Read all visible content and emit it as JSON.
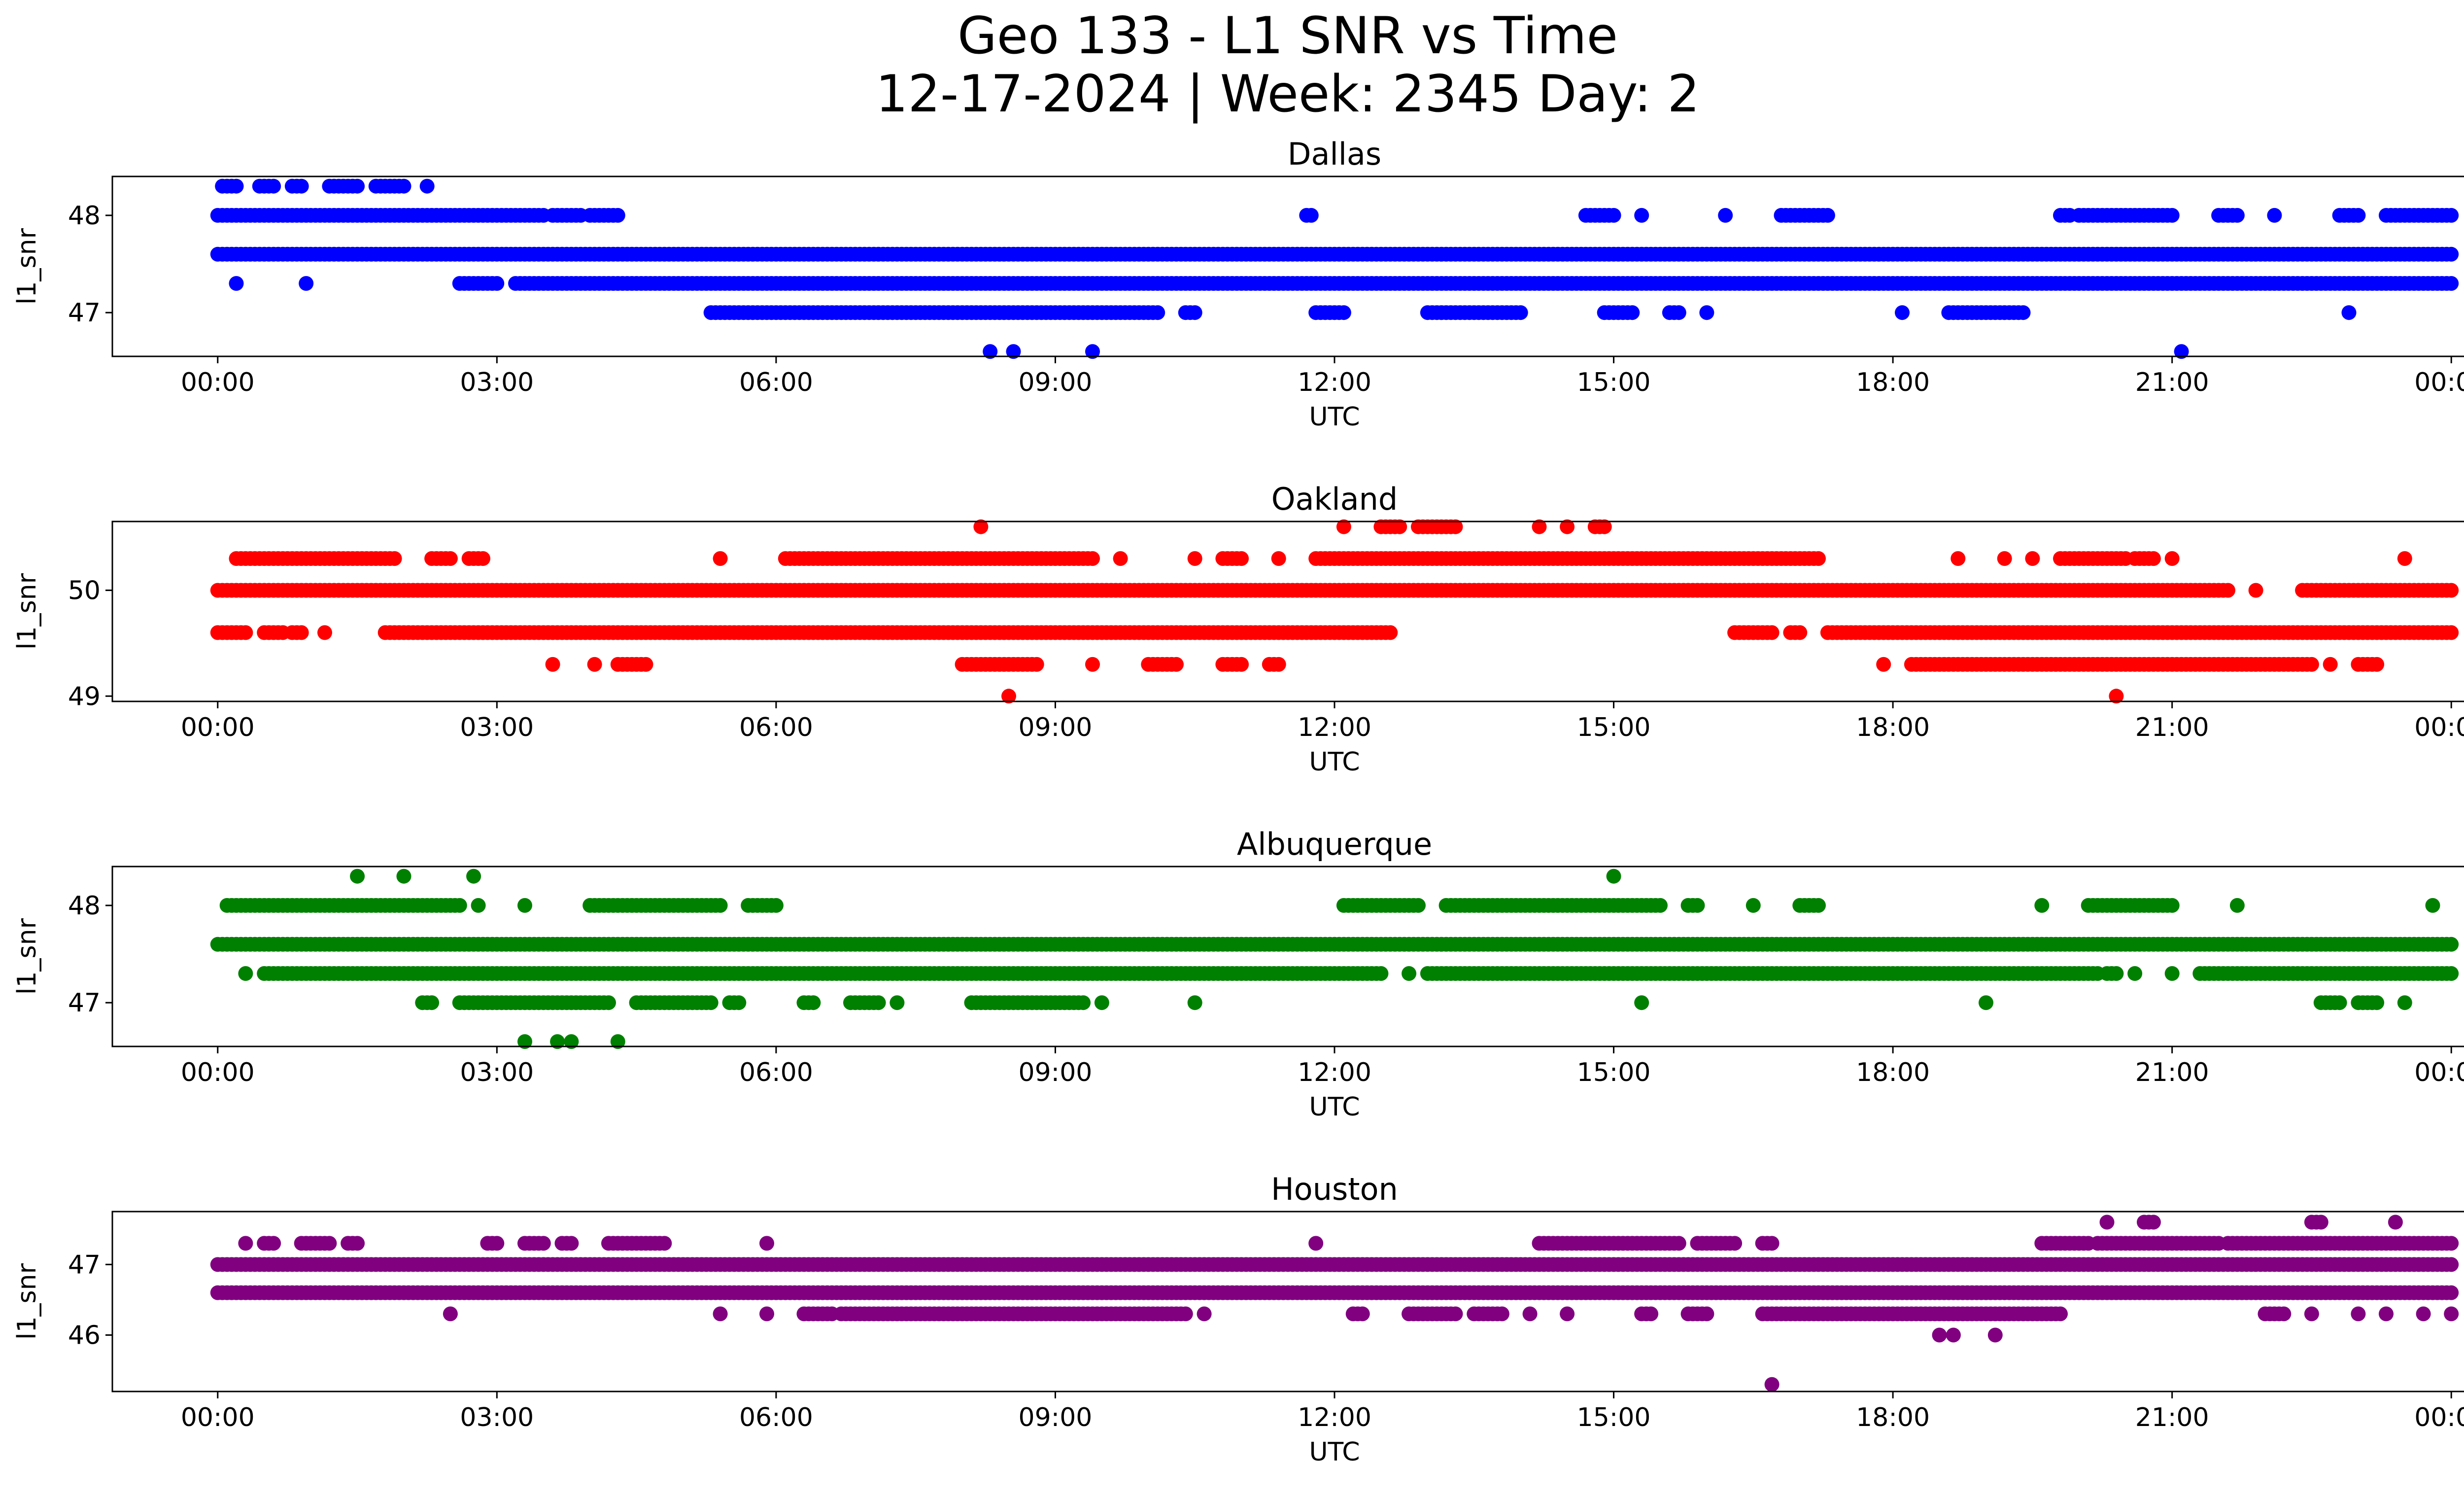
{
  "title": {
    "line1": "Geo 133 - L1 SNR vs Time",
    "line2": "12-17-2024 | Week: 2345 Day: 2"
  },
  "chart_data": [
    {
      "type": "scatter",
      "title": "Dallas",
      "xlabel": "UTC",
      "ylabel": "l1_snr",
      "color": "#0000ff",
      "xticks": [
        "00:00",
        "03:00",
        "06:00",
        "09:00",
        "12:00",
        "15:00",
        "18:00",
        "21:00",
        "00:00"
      ],
      "xlim": [
        0,
        24
      ],
      "ylim": [
        46.55,
        48.4
      ],
      "yticks": [
        47,
        48
      ],
      "series": [
        {
          "y": 47.6,
          "segments": [
            [
              0,
              24
            ]
          ]
        },
        {
          "y": 48.0,
          "segments": [
            [
              0,
              3.5
            ],
            [
              3.6,
              3.9
            ],
            [
              4.0,
              4.3
            ],
            [
              11.7,
              11.75
            ],
            [
              14.7,
              15.0
            ],
            [
              15.3,
              15.3
            ],
            [
              16.2,
              16.2
            ],
            [
              16.8,
              17.3
            ],
            [
              19.8,
              19.9
            ],
            [
              20.0,
              21.0
            ],
            [
              21.5,
              21.7
            ],
            [
              22.1,
              22.1
            ],
            [
              22.8,
              23.0
            ],
            [
              23.3,
              24
            ]
          ]
        },
        {
          "y": 48.3,
          "segments": [
            [
              0.05,
              0.2
            ],
            [
              0.45,
              0.6
            ],
            [
              0.8,
              0.9
            ],
            [
              1.2,
              1.5
            ],
            [
              1.7,
              2.0
            ],
            [
              2.25,
              2.25
            ]
          ]
        },
        {
          "y": 47.3,
          "segments": [
            [
              2.6,
              3.0
            ],
            [
              3.2,
              24
            ]
          ]
        },
        {
          "y": 47.0,
          "segments": [
            [
              5.3,
              10.1
            ],
            [
              10.4,
              10.5
            ],
            [
              11.8,
              12.1
            ],
            [
              13.0,
              14.0
            ],
            [
              14.9,
              15.2
            ],
            [
              15.6,
              15.7
            ],
            [
              16.0,
              16.0
            ],
            [
              18.1,
              18.1
            ],
            [
              18.6,
              19.4
            ],
            [
              22.9,
              22.9
            ]
          ]
        }
      ],
      "points": [
        {
          "x": 0.2,
          "y": 47.3
        },
        {
          "x": 0.95,
          "y": 47.3
        },
        {
          "x": 8.3,
          "y": 46.6
        },
        {
          "x": 8.55,
          "y": 46.6
        },
        {
          "x": 9.4,
          "y": 46.6
        },
        {
          "x": 21.1,
          "y": 46.6
        }
      ]
    },
    {
      "type": "scatter",
      "title": "Oakland",
      "xlabel": "UTC",
      "ylabel": "l1_snr",
      "color": "#ff0000",
      "xticks": [
        "00:00",
        "03:00",
        "06:00",
        "09:00",
        "12:00",
        "15:00",
        "18:00",
        "21:00",
        "00:00"
      ],
      "xlim": [
        0,
        24
      ],
      "ylim": [
        48.95,
        50.65
      ],
      "yticks": [
        49,
        50
      ],
      "series": [
        {
          "y": 50.0,
          "segments": [
            [
              0,
              21.6
            ],
            [
              21.9,
              21.9
            ],
            [
              22.4,
              24
            ]
          ]
        },
        {
          "y": 50.3,
          "segments": [
            [
              0.2,
              1.9
            ],
            [
              2.3,
              2.5
            ],
            [
              2.7,
              2.85
            ],
            [
              5.4,
              5.4
            ],
            [
              6.1,
              9.4
            ],
            [
              9.7,
              9.7
            ],
            [
              10.5,
              10.5
            ],
            [
              10.8,
              11.0
            ],
            [
              11.4,
              11.4
            ],
            [
              11.8,
              17.2
            ],
            [
              18.7,
              18.7
            ],
            [
              19.2,
              19.2
            ],
            [
              19.5,
              19.5
            ],
            [
              19.8,
              20.5
            ],
            [
              20.6,
              20.8
            ],
            [
              21.0,
              21.0
            ],
            [
              23.5,
              23.5
            ]
          ]
        },
        {
          "y": 49.6,
          "segments": [
            [
              0,
              0.3
            ],
            [
              0.5,
              0.7
            ],
            [
              0.8,
              0.9
            ],
            [
              1.15,
              1.15
            ],
            [
              1.8,
              12.6
            ],
            [
              16.3,
              16.7
            ],
            [
              16.9,
              17.0
            ],
            [
              17.3,
              24
            ]
          ]
        },
        {
          "y": 49.3,
          "segments": [
            [
              3.6,
              3.6
            ],
            [
              4.05,
              4.05
            ],
            [
              4.3,
              4.6
            ],
            [
              8.0,
              8.8
            ],
            [
              9.4,
              9.4
            ],
            [
              10.0,
              10.3
            ],
            [
              10.8,
              11.0
            ],
            [
              11.3,
              11.4
            ],
            [
              17.9,
              17.9
            ],
            [
              18.2,
              22.5
            ],
            [
              22.7,
              22.7
            ],
            [
              23.0,
              23.2
            ]
          ]
        },
        {
          "y": 50.6,
          "segments": [
            [
              8.2,
              8.2
            ],
            [
              12.1,
              12.1
            ],
            [
              12.5,
              12.7
            ],
            [
              12.9,
              13.3
            ],
            [
              14.2,
              14.2
            ],
            [
              14.5,
              14.5
            ],
            [
              14.8,
              14.9
            ]
          ]
        }
      ],
      "points": [
        {
          "x": 8.5,
          "y": 49.0
        },
        {
          "x": 20.4,
          "y": 49.0
        }
      ]
    },
    {
      "type": "scatter",
      "title": "Albuquerque",
      "xlabel": "UTC",
      "ylabel": "l1_snr",
      "color": "#008000",
      "xticks": [
        "00:00",
        "03:00",
        "06:00",
        "09:00",
        "12:00",
        "15:00",
        "18:00",
        "21:00",
        "00:00"
      ],
      "xlim": [
        0,
        24
      ],
      "ylim": [
        46.55,
        48.4
      ],
      "yticks": [
        47,
        48
      ],
      "series": [
        {
          "y": 47.6,
          "segments": [
            [
              0,
              24
            ]
          ]
        },
        {
          "y": 48.0,
          "segments": [
            [
              0.1,
              2.6
            ],
            [
              2.8,
              2.8
            ],
            [
              3.3,
              3.3
            ],
            [
              4.0,
              5.4
            ],
            [
              5.7,
              6.0
            ],
            [
              12.1,
              12.9
            ],
            [
              13.2,
              15.5
            ],
            [
              15.8,
              15.9
            ],
            [
              16.5,
              16.5
            ],
            [
              17.0,
              17.2
            ],
            [
              19.6,
              19.6
            ],
            [
              20.1,
              21.0
            ],
            [
              21.7,
              21.7
            ],
            [
              23.8,
              23.8
            ]
          ]
        },
        {
          "y": 48.3,
          "segments": [
            [
              1.5,
              1.5
            ],
            [
              2.0,
              2.0
            ],
            [
              2.75,
              2.75
            ],
            [
              15.0,
              15.0
            ]
          ]
        },
        {
          "y": 47.3,
          "segments": [
            [
              0.3,
              0.3
            ],
            [
              0.5,
              12.5
            ],
            [
              12.8,
              12.8
            ],
            [
              13.0,
              20.2
            ],
            [
              20.3,
              20.4
            ],
            [
              20.6,
              20.6
            ],
            [
              21.0,
              21.0
            ],
            [
              21.3,
              24
            ]
          ]
        },
        {
          "y": 47.0,
          "segments": [
            [
              2.2,
              2.3
            ],
            [
              2.6,
              4.2
            ],
            [
              4.5,
              5.3
            ],
            [
              5.5,
              5.6
            ],
            [
              6.3,
              6.4
            ],
            [
              6.8,
              7.1
            ],
            [
              7.3,
              7.3
            ],
            [
              8.1,
              9.3
            ],
            [
              9.5,
              9.5
            ],
            [
              10.5,
              10.5
            ],
            [
              15.3,
              15.3
            ],
            [
              19.0,
              19.0
            ],
            [
              22.6,
              22.8
            ],
            [
              23.0,
              23.2
            ],
            [
              23.5,
              23.5
            ]
          ]
        }
      ],
      "points": [
        {
          "x": 3.3,
          "y": 46.6
        },
        {
          "x": 3.65,
          "y": 46.6
        },
        {
          "x": 3.8,
          "y": 46.6
        },
        {
          "x": 4.3,
          "y": 46.6
        }
      ]
    },
    {
      "type": "scatter",
      "title": "Houston",
      "xlabel": "UTC",
      "ylabel": "l1_snr",
      "color": "#800080",
      "xticks": [
        "00:00",
        "03:00",
        "06:00",
        "09:00",
        "12:00",
        "15:00",
        "18:00",
        "21:00",
        "00:00"
      ],
      "xlim": [
        0,
        24
      ],
      "ylim": [
        45.2,
        47.75
      ],
      "yticks": [
        46,
        47
      ],
      "series": [
        {
          "y": 47.0,
          "segments": [
            [
              0,
              24
            ]
          ]
        },
        {
          "y": 46.6,
          "segments": [
            [
              0,
              24
            ]
          ]
        },
        {
          "y": 47.3,
          "segments": [
            [
              0.3,
              0.3
            ],
            [
              0.5,
              0.6
            ],
            [
              0.9,
              1.2
            ],
            [
              1.4,
              1.5
            ],
            [
              2.9,
              3.0
            ],
            [
              3.3,
              3.5
            ],
            [
              3.7,
              3.8
            ],
            [
              4.2,
              4.8
            ],
            [
              5.9,
              5.9
            ],
            [
              11.8,
              11.8
            ],
            [
              14.2,
              15.7
            ],
            [
              15.9,
              16.3
            ],
            [
              16.6,
              16.7
            ],
            [
              19.6,
              20.1
            ],
            [
              20.2,
              21.5
            ],
            [
              21.6,
              24
            ]
          ]
        },
        {
          "y": 46.3,
          "segments": [
            [
              2.5,
              2.5
            ],
            [
              5.4,
              5.4
            ],
            [
              5.9,
              5.9
            ],
            [
              6.3,
              6.6
            ],
            [
              6.7,
              10.4
            ],
            [
              10.6,
              10.6
            ],
            [
              12.2,
              12.3
            ],
            [
              12.8,
              13.3
            ],
            [
              13.5,
              13.8
            ],
            [
              14.1,
              14.1
            ],
            [
              14.5,
              14.5
            ],
            [
              15.3,
              15.4
            ],
            [
              15.8,
              16.0
            ],
            [
              16.6,
              19.8
            ],
            [
              22.0,
              22.2
            ],
            [
              22.5,
              22.5
            ],
            [
              23.0,
              23.0
            ],
            [
              23.3,
              23.3
            ],
            [
              23.7,
              23.7
            ],
            [
              24,
              24
            ]
          ]
        },
        {
          "y": 47.6,
          "segments": [
            [
              20.3,
              20.3
            ],
            [
              20.7,
              20.8
            ],
            [
              22.5,
              22.6
            ],
            [
              23.4,
              23.4
            ]
          ]
        }
      ],
      "points": [
        {
          "x": 18.5,
          "y": 46.0
        },
        {
          "x": 18.65,
          "y": 46.0
        },
        {
          "x": 19.1,
          "y": 46.0
        },
        {
          "x": 16.7,
          "y": 45.3
        }
      ]
    }
  ]
}
